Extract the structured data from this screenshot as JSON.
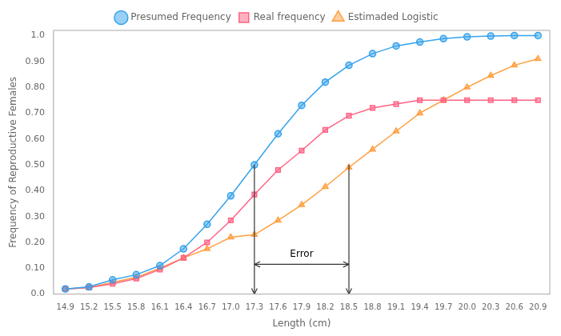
{
  "chart_data": {
    "type": "line",
    "xlabel": "Length (cm)",
    "ylabel": "Frequency of Reproductive Females",
    "x": [
      14.9,
      15.2,
      15.5,
      15.8,
      16.1,
      16.4,
      16.7,
      17.0,
      17.3,
      17.6,
      17.9,
      18.2,
      18.5,
      18.8,
      19.1,
      19.4,
      19.7,
      20.0,
      20.3,
      20.6,
      20.9
    ],
    "series": [
      {
        "name": "Presumed Frequency",
        "marker": "circle",
        "values": [
          0.02,
          0.028,
          0.055,
          0.075,
          0.11,
          0.175,
          0.27,
          0.38,
          0.5,
          0.62,
          0.73,
          0.82,
          0.885,
          0.93,
          0.96,
          0.975,
          0.988,
          0.995,
          0.998,
          1.0,
          1.0
        ]
      },
      {
        "name": "Real frequency",
        "marker": "square",
        "values": [
          0.02,
          0.025,
          0.04,
          0.06,
          0.095,
          0.14,
          0.2,
          0.285,
          0.385,
          0.48,
          0.555,
          0.635,
          0.69,
          0.72,
          0.735,
          0.75,
          0.75,
          0.75,
          0.75,
          0.75,
          0.75
        ]
      },
      {
        "name": "Estimaded Logistic",
        "marker": "triangle",
        "values": [
          0.02,
          0.025,
          0.045,
          0.065,
          0.1,
          0.14,
          0.175,
          0.22,
          0.23,
          0.285,
          0.345,
          0.415,
          0.49,
          0.56,
          0.63,
          0.7,
          0.75,
          0.8,
          0.845,
          0.885,
          0.91
        ]
      }
    ],
    "xlim": [
      14.75,
      21.05
    ],
    "xticks": [
      14.9,
      15.2,
      15.5,
      15.8,
      16.1,
      16.4,
      16.7,
      {
        "value": 17.0,
        "label": "17.0"
      },
      17.3,
      17.6,
      17.9,
      18.2,
      18.5,
      18.8,
      19.1,
      19.4,
      19.7,
      {
        "value": 20.0,
        "label": "20.0"
      },
      20.3,
      20.6,
      20.9
    ],
    "ylim": [
      0.0,
      1.02
    ],
    "yticks": [
      {
        "value": 0.0,
        "label": "0.0"
      },
      {
        "value": 0.1,
        "label": "0.10"
      },
      {
        "value": 0.2,
        "label": "0.20"
      },
      {
        "value": 0.3,
        "label": "0.30"
      },
      {
        "value": 0.4,
        "label": "0.40"
      },
      {
        "value": 0.5,
        "label": "0.50"
      },
      {
        "value": 0.6,
        "label": "0.60"
      },
      {
        "value": 0.7,
        "label": "0.70"
      },
      {
        "value": 0.8,
        "label": "0.80"
      },
      {
        "value": 0.9,
        "label": "0.90"
      },
      {
        "value": 1.0,
        "label": "1.0"
      }
    ],
    "grid": false,
    "legend": "top",
    "annotations": [
      {
        "type": "arrow",
        "x": [
          17.3,
          17.3
        ],
        "y": [
          0.5,
          0.0
        ]
      },
      {
        "type": "arrow",
        "x": [
          18.5,
          18.5
        ],
        "y": [
          0.5,
          0.0
        ]
      },
      {
        "type": "double_arrow",
        "x": [
          17.3,
          18.5
        ],
        "y": [
          0.115,
          0.115
        ]
      },
      {
        "type": "text",
        "text": "Error",
        "x": 17.9,
        "y": 0.135
      }
    ]
  }
}
